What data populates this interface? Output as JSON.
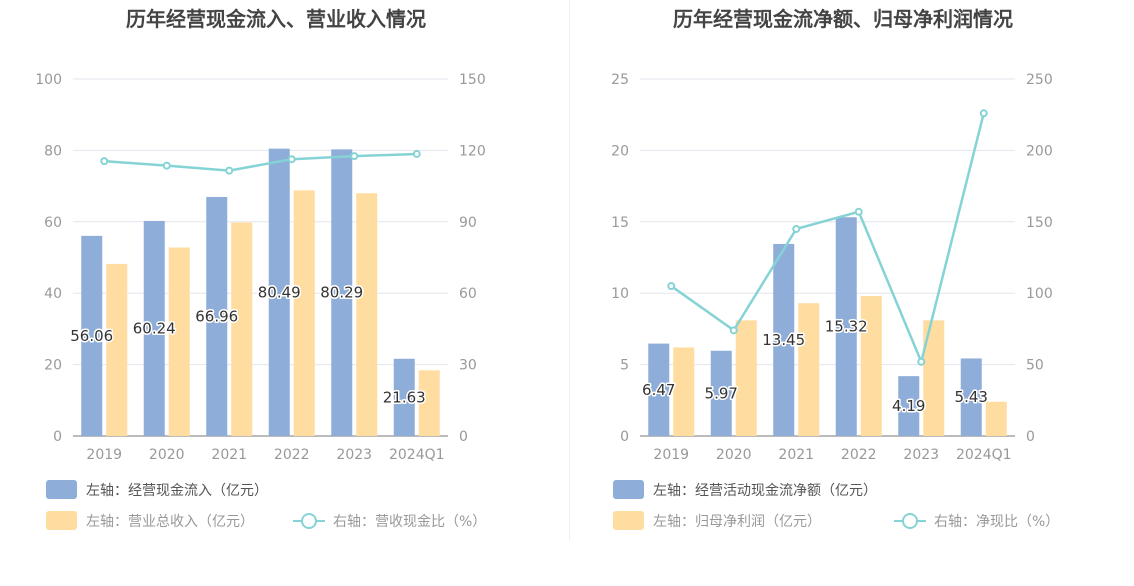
{
  "colors": {
    "bar1": "#8eadd9",
    "bar2": "#ffdc9f",
    "line": "#86d3d6",
    "grid": "#e3e6ee",
    "axis": "#999999",
    "title": "#444444"
  },
  "chart_data": [
    {
      "type": "bar",
      "title": "历年经营现金流入、营业收入情况",
      "categories": [
        "2019",
        "2020",
        "2021",
        "2022",
        "2023",
        "2024Q1"
      ],
      "left_axis": {
        "ticks": [
          "0",
          "20",
          "40",
          "60",
          "80",
          "100"
        ],
        "range": [
          0,
          100
        ]
      },
      "right_axis": {
        "ticks": [
          "0",
          "30",
          "60",
          "90",
          "120",
          "150"
        ],
        "range": [
          0,
          150
        ]
      },
      "series": [
        {
          "name": "左轴：经营现金流入（亿元）",
          "kind": "bar",
          "axis": "left",
          "values": [
            56.06,
            60.24,
            66.96,
            80.49,
            80.29,
            21.63
          ],
          "labels": [
            "56.06",
            "60.24",
            "66.96",
            "80.49",
            "80.29",
            "21.63"
          ]
        },
        {
          "name": "左轴：营业总收入（亿元）",
          "kind": "bar",
          "axis": "left",
          "values": [
            48.2,
            52.8,
            59.8,
            68.8,
            68.0,
            18.4
          ]
        },
        {
          "name": "右轴：营收现金比（%）",
          "kind": "line",
          "axis": "right",
          "values": [
            115.5,
            113.6,
            111.5,
            116.3,
            117.6,
            118.5
          ]
        }
      ]
    },
    {
      "type": "bar",
      "title": "历年经营现金流净额、归母净利润情况",
      "categories": [
        "2019",
        "2020",
        "2021",
        "2022",
        "2023",
        "2024Q1"
      ],
      "left_axis": {
        "ticks": [
          "0",
          "5",
          "10",
          "15",
          "20",
          "25"
        ],
        "range": [
          0,
          25
        ]
      },
      "right_axis": {
        "ticks": [
          "0",
          "50",
          "100",
          "150",
          "200",
          "250"
        ],
        "range": [
          0,
          250
        ]
      },
      "series": [
        {
          "name": "左轴：经营活动现金流净额（亿元）",
          "kind": "bar",
          "axis": "left",
          "values": [
            6.47,
            5.97,
            13.45,
            15.32,
            4.19,
            5.43
          ],
          "labels": [
            "6.47",
            "5.97",
            "13.45",
            "15.32",
            "4.19",
            "5.43"
          ]
        },
        {
          "name": "左轴：归母净利润（亿元）",
          "kind": "bar",
          "axis": "left",
          "values": [
            6.2,
            8.1,
            9.3,
            9.8,
            8.1,
            2.4
          ]
        },
        {
          "name": "右轴：净现比（%）",
          "kind": "line",
          "axis": "right",
          "values": [
            105,
            74,
            145,
            157,
            52,
            226
          ]
        }
      ]
    }
  ]
}
